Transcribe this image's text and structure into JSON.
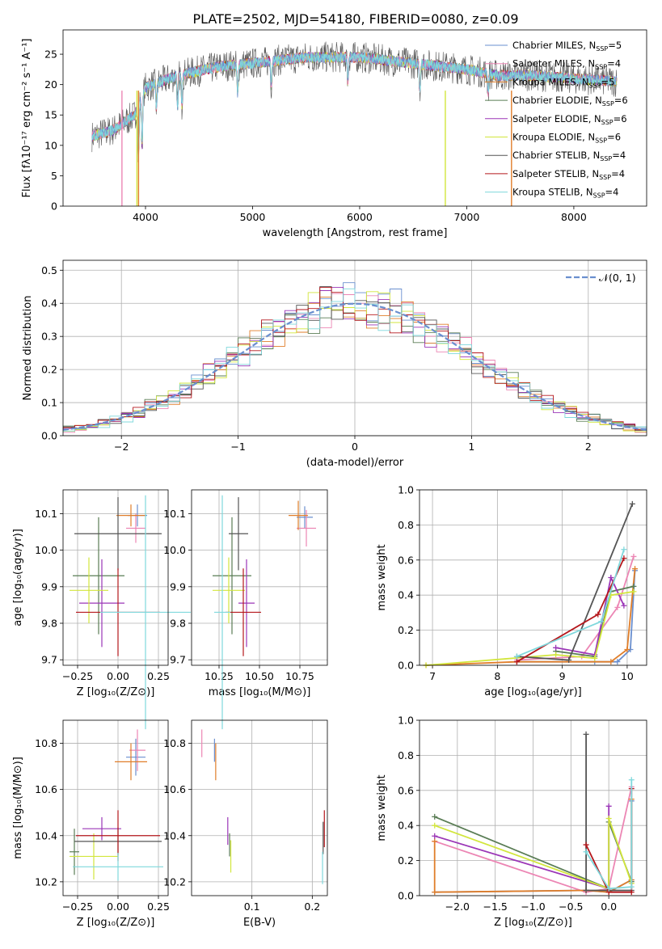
{
  "figure": {
    "title": "PLATE=2502, MJD=54180, FIBERID=0080, z=0.09"
  },
  "colors": {
    "Chabrier MILES": "#6a8fcf",
    "Salpeter MILES": "#ec86b4",
    "Kroupa MILES": "#e07e2a",
    "Chabrier ELODIE": "#5a7d55",
    "Salpeter ELODIE": "#9b36b7",
    "Kroupa ELODIE": "#d2e63c",
    "Chabrier STELIB": "#555555",
    "Salpeter STELIB": "#b5171c",
    "Kroupa STELIB": "#7fd8dc",
    "normal": "#6a8fcf"
  },
  "chart_data": [
    {
      "id": "spectrum",
      "type": "line",
      "xlabel": "wavelength [Angstrom, rest frame]",
      "ylabel": "Flux [fλ10⁻¹⁷ erg cm⁻² s⁻¹ A⁻¹]",
      "xlim": [
        3230,
        8680
      ],
      "ylim": [
        0,
        29
      ],
      "xticks": [
        4000,
        5000,
        6000,
        7000,
        8000
      ],
      "yticks": [
        0,
        5,
        10,
        15,
        20,
        25
      ],
      "legend_position": "top-right",
      "series": [
        {
          "name": "Chabrier MILES, N_SSP=5",
          "key": "Chabrier MILES"
        },
        {
          "name": "Salpeter MILES, N_SSP=4",
          "key": "Salpeter MILES"
        },
        {
          "name": "Kroupa MILES, N_SSP=5",
          "key": "Kroupa MILES"
        },
        {
          "name": "Chabrier ELODIE, N_SSP=6",
          "key": "Chabrier ELODIE"
        },
        {
          "name": "Salpeter ELODIE, N_SSP=6",
          "key": "Salpeter ELODIE"
        },
        {
          "name": "Kroupa ELODIE, N_SSP=6",
          "key": "Kroupa ELODIE"
        },
        {
          "name": "Chabrier STELIB, N_SSP=4",
          "key": "Chabrier STELIB"
        },
        {
          "name": "Salpeter STELIB, N_SSP=4",
          "key": "Salpeter STELIB"
        },
        {
          "name": "Kroupa STELIB, N_SSP=4",
          "key": "Kroupa STELIB"
        }
      ],
      "continuum": {
        "x": [
          3500,
          3700,
          3900,
          4000,
          4300,
          4700,
          5000,
          5500,
          6000,
          6500,
          7000,
          7300,
          7600,
          8000,
          8400
        ],
        "y": [
          11.5,
          12.5,
          15.0,
          19.5,
          21.5,
          23.0,
          23.5,
          24.5,
          24.5,
          23.5,
          22.5,
          21.5,
          21.5,
          21.0,
          20.5
        ]
      }
    },
    {
      "id": "residuals",
      "type": "line",
      "xlabel": "(data-model)/error",
      "ylabel": "Normed distribution",
      "xlim": [
        -2.5,
        2.5
      ],
      "ylim": [
        0,
        0.53
      ],
      "xticks": [
        -2,
        -1,
        0,
        1,
        2
      ],
      "xticklabels": [
        "−2",
        "−1",
        "0",
        "1",
        "2"
      ],
      "yticks": [
        0,
        0.1,
        0.2,
        0.3,
        0.4,
        0.5
      ],
      "yticklabels": [
        "0.0",
        "0.1",
        "0.2",
        "0.3",
        "0.4",
        "0.5"
      ],
      "grid": true,
      "legend_position": "top-right",
      "normal_label": "𝒩(0, 1)",
      "bin_width": 0.1
    },
    {
      "id": "age_vs_Z",
      "type": "scatter",
      "xlabel": "Z [log₁₀(Z/Z⊙)]",
      "ylabel": "age  [log₁₀(age/yr)]",
      "xlim": [
        -0.34,
        0.31
      ],
      "ylim": [
        9.685,
        10.165
      ],
      "xticks": [
        -0.25,
        0,
        0.25
      ],
      "xticklabels": [
        "−0.25",
        "0.00",
        "0.25"
      ],
      "yticks": [
        9.7,
        9.8,
        9.9,
        10.0,
        10.1
      ],
      "yticklabels": [
        "9.7",
        "9.8",
        "9.9",
        "10.0",
        "10.1"
      ],
      "grid": true,
      "points": [
        {
          "key": "Chabrier MILES",
          "x": 0.12,
          "y": 10.095,
          "xerr": 0.06,
          "yerr": 0.03
        },
        {
          "key": "Salpeter MILES",
          "x": 0.11,
          "y": 10.06,
          "xerr": 0.06,
          "yerr": 0.04
        },
        {
          "key": "Kroupa MILES",
          "x": 0.08,
          "y": 10.095,
          "xerr": 0.09,
          "yerr": 0.03
        },
        {
          "key": "Chabrier ELODIE",
          "x": -0.12,
          "y": 9.93,
          "xerr": 0.16,
          "yerr": 0.16
        },
        {
          "key": "Salpeter ELODIE",
          "x": -0.1,
          "y": 9.855,
          "xerr": 0.14,
          "yerr": 0.12
        },
        {
          "key": "Kroupa ELODIE",
          "x": -0.18,
          "y": 9.89,
          "xerr": 0.12,
          "yerr": 0.09
        },
        {
          "key": "Chabrier STELIB",
          "x": 0.0,
          "y": 10.045,
          "xerr": 0.27,
          "yerr": 0.1
        },
        {
          "key": "Salpeter STELIB",
          "x": 0.0,
          "y": 9.83,
          "xerr": 0.26,
          "yerr": 0.12
        },
        {
          "key": "Kroupa STELIB",
          "x": 0.17,
          "y": 9.83,
          "xerr": 0.28,
          "yerr": 0.32
        }
      ]
    },
    {
      "id": "age_vs_mass",
      "type": "scatter",
      "xlabel": "mass [log₁₀(M/M⊙)]",
      "ylabel": "",
      "xlim": [
        10.08,
        10.92
      ],
      "ylim": [
        9.685,
        10.165
      ],
      "xticks": [
        10.25,
        10.5,
        10.75
      ],
      "xticklabels": [
        "10.25",
        "10.50",
        "10.75"
      ],
      "yticks": [
        9.7,
        9.8,
        9.9,
        10.0,
        10.1
      ],
      "yticklabels": [
        "9.7",
        "9.8",
        "9.9",
        "10.0",
        "10.1"
      ],
      "grid": true,
      "points": [
        {
          "key": "Chabrier MILES",
          "x": 10.78,
          "y": 10.09,
          "xerr": 0.05,
          "yerr": 0.03
        },
        {
          "key": "Salpeter MILES",
          "x": 10.79,
          "y": 10.06,
          "xerr": 0.06,
          "yerr": 0.05
        },
        {
          "key": "Kroupa MILES",
          "x": 10.74,
          "y": 10.095,
          "xerr": 0.06,
          "yerr": 0.04
        },
        {
          "key": "Chabrier ELODIE",
          "x": 10.33,
          "y": 9.93,
          "xerr": 0.12,
          "yerr": 0.16
        },
        {
          "key": "Salpeter ELODIE",
          "x": 10.42,
          "y": 9.855,
          "xerr": 0.05,
          "yerr": 0.12
        },
        {
          "key": "Kroupa ELODIE",
          "x": 10.31,
          "y": 9.89,
          "xerr": 0.1,
          "yerr": 0.09
        },
        {
          "key": "Chabrier STELIB",
          "x": 10.37,
          "y": 10.045,
          "xerr": 0.06,
          "yerr": 0.1
        },
        {
          "key": "Salpeter STELIB",
          "x": 10.4,
          "y": 9.83,
          "xerr": 0.11,
          "yerr": 0.12
        },
        {
          "key": "Kroupa STELIB",
          "x": 10.27,
          "y": 9.83,
          "xerr": 0.05,
          "yerr": 0.32
        }
      ]
    },
    {
      "id": "weight_vs_age",
      "type": "line",
      "xlabel": "age  [log₁₀(age/yr)]",
      "ylabel": "mass weight",
      "xlim": [
        6.8,
        10.3
      ],
      "ylim": [
        0,
        1.0
      ],
      "xticks": [
        7,
        8,
        9,
        10
      ],
      "xticklabels": [
        "7",
        "8",
        "9",
        "10"
      ],
      "yticks": [
        0,
        0.2,
        0.4,
        0.6,
        0.8,
        1.0
      ],
      "yticklabels": [
        "0.0",
        "0.2",
        "0.4",
        "0.6",
        "0.8",
        "1.0"
      ],
      "grid": true,
      "series": [
        {
          "key": "Chabrier MILES",
          "x": [
            8.3,
            9.5,
            9.85,
            10.05,
            10.12
          ],
          "y": [
            0.02,
            0.02,
            0.02,
            0.09,
            0.54
          ]
        },
        {
          "key": "Salpeter MILES",
          "x": [
            8.3,
            9.3,
            9.85,
            10.1
          ],
          "y": [
            0.03,
            0.05,
            0.33,
            0.62
          ]
        },
        {
          "key": "Kroupa MILES",
          "x": [
            6.9,
            8.3,
            9.75,
            10.0,
            10.12
          ],
          "y": [
            0.0,
            0.02,
            0.02,
            0.09,
            0.55
          ]
        },
        {
          "key": "Chabrier ELODIE",
          "x": [
            8.9,
            9.5,
            9.75,
            10.1
          ],
          "y": [
            0.08,
            0.05,
            0.42,
            0.45
          ]
        },
        {
          "key": "Salpeter ELODIE",
          "x": [
            8.9,
            9.5,
            9.75,
            9.95
          ],
          "y": [
            0.1,
            0.06,
            0.5,
            0.34
          ]
        },
        {
          "key": "Kroupa ELODIE",
          "x": [
            6.9,
            8.9,
            9.5,
            9.75,
            10.1
          ],
          "y": [
            0.0,
            0.06,
            0.04,
            0.4,
            0.42
          ]
        },
        {
          "key": "Chabrier STELIB",
          "x": [
            8.3,
            9.1,
            10.08
          ],
          "y": [
            0.05,
            0.03,
            0.92
          ]
        },
        {
          "key": "Salpeter STELIB",
          "x": [
            8.3,
            9.55,
            9.95
          ],
          "y": [
            0.02,
            0.29,
            0.61
          ]
        },
        {
          "key": "Kroupa STELIB",
          "x": [
            8.3,
            9.6,
            9.95
          ],
          "y": [
            0.05,
            0.25,
            0.66
          ]
        }
      ]
    },
    {
      "id": "mass_vs_Z",
      "type": "scatter",
      "xlabel": "Z [log₁₀(Z/Z⊙)]",
      "ylabel": "mass [log₁₀(M/M⊙)]",
      "xlim": [
        -0.34,
        0.31
      ],
      "ylim": [
        10.14,
        10.9
      ],
      "xticks": [
        -0.25,
        0,
        0.25
      ],
      "xticklabels": [
        "−0.25",
        "0.00",
        "0.25"
      ],
      "yticks": [
        10.2,
        10.4,
        10.6,
        10.8
      ],
      "yticklabels": [
        "10.2",
        "10.4",
        "10.6",
        "10.8"
      ],
      "grid": true,
      "points": [
        {
          "key": "Chabrier MILES",
          "x": 0.11,
          "y": 10.74,
          "xerr": 0.06,
          "yerr": 0.08
        },
        {
          "key": "Salpeter MILES",
          "x": 0.12,
          "y": 10.77,
          "xerr": 0.05,
          "yerr": 0.09
        },
        {
          "key": "Kroupa MILES",
          "x": 0.08,
          "y": 10.72,
          "xerr": 0.1,
          "yerr": 0.08
        },
        {
          "key": "Chabrier ELODIE",
          "x": -0.27,
          "y": 10.33,
          "xerr": 0.03,
          "yerr": 0.1
        },
        {
          "key": "Salpeter ELODIE",
          "x": -0.1,
          "y": 10.43,
          "xerr": 0.12,
          "yerr": 0.05
        },
        {
          "key": "Kroupa ELODIE",
          "x": -0.15,
          "y": 10.31,
          "xerr": 0.15,
          "yerr": 0.1
        },
        {
          "key": "Chabrier STELIB",
          "x": 0.0,
          "y": 10.375,
          "xerr": 0.27,
          "yerr": 0.06
        },
        {
          "key": "Salpeter STELIB",
          "x": 0.0,
          "y": 10.4,
          "xerr": 0.26,
          "yerr": 0.11
        },
        {
          "key": "Kroupa STELIB",
          "x": 0.0,
          "y": 10.265,
          "xerr": 0.28,
          "yerr": 0.06
        }
      ]
    },
    {
      "id": "mass_vs_ebv",
      "type": "scatter",
      "xlabel": "E(B-V)",
      "ylabel": "",
      "xlim": [
        0.0,
        0.225
      ],
      "ylim": [
        10.14,
        10.9
      ],
      "xticks": [
        0.1,
        0.2
      ],
      "xticklabels": [
        "0.1",
        "0.2"
      ],
      "yticks": [
        10.2,
        10.4,
        10.6,
        10.8
      ],
      "yticklabels": [
        "10.2",
        "10.4",
        "10.6",
        "10.8"
      ],
      "grid": true,
      "points": [
        {
          "key": "Chabrier MILES",
          "x": 0.038,
          "y": 10.77,
          "xerr": 0,
          "yerr": 0.05
        },
        {
          "key": "Salpeter MILES",
          "x": 0.017,
          "y": 10.8,
          "xerr": 0,
          "yerr": 0.06
        },
        {
          "key": "Kroupa MILES",
          "x": 0.04,
          "y": 10.72,
          "xerr": 0,
          "yerr": 0.08
        },
        {
          "key": "Chabrier ELODIE",
          "x": 0.063,
          "y": 10.36,
          "xerr": 0,
          "yerr": 0.05
        },
        {
          "key": "Salpeter ELODIE",
          "x": 0.06,
          "y": 10.42,
          "xerr": 0,
          "yerr": 0.06
        },
        {
          "key": "Kroupa ELODIE",
          "x": 0.065,
          "y": 10.31,
          "xerr": 0,
          "yerr": 0.07
        },
        {
          "key": "Chabrier STELIB",
          "x": 0.218,
          "y": 10.39,
          "xerr": 0,
          "yerr": 0.07
        },
        {
          "key": "Salpeter STELIB",
          "x": 0.22,
          "y": 10.43,
          "xerr": 0,
          "yerr": 0.08
        },
        {
          "key": "Kroupa STELIB",
          "x": 0.217,
          "y": 10.26,
          "xerr": 0,
          "yerr": 0.07
        }
      ]
    },
    {
      "id": "weight_vs_Z",
      "type": "line",
      "xlabel": "Z [log₁₀(Z/Z⊙)]",
      "ylabel": "mass weight",
      "xlim": [
        -2.5,
        0.5
      ],
      "ylim": [
        0,
        1.0
      ],
      "xticks": [
        -2.0,
        -1.5,
        -1.0,
        -0.5,
        0.0
      ],
      "xticklabels": [
        "−2.0",
        "−1.5",
        "−1.0",
        "−0.5",
        "0.0"
      ],
      "yticks": [
        0,
        0.2,
        0.4,
        0.6,
        0.8,
        1.0
      ],
      "yticklabels": [
        "0.0",
        "0.2",
        "0.4",
        "0.6",
        "0.8",
        "1.0"
      ],
      "grid": true,
      "series": [
        {
          "key": "Chabrier MILES",
          "x": [
            -2.3,
            -0.3,
            0.0,
            0.3,
            0.3
          ],
          "y": [
            0.02,
            0.03,
            0.02,
            0.09,
            0.54
          ]
        },
        {
          "key": "Salpeter MILES",
          "x": [
            -2.3,
            -0.3,
            0.0,
            0.3
          ],
          "y": [
            0.31,
            0.02,
            0.04,
            0.62
          ]
        },
        {
          "key": "Kroupa MILES",
          "x": [
            -2.3,
            -2.3,
            -0.3,
            0.0,
            0.3,
            0.3
          ],
          "y": [
            0.31,
            0.02,
            0.03,
            0.02,
            0.09,
            0.55
          ]
        },
        {
          "key": "Chabrier ELODIE",
          "x": [
            -2.3,
            0.0,
            0.0,
            0.3
          ],
          "y": [
            0.45,
            0.04,
            0.42,
            0.08
          ]
        },
        {
          "key": "Salpeter ELODIE",
          "x": [
            -2.3,
            0.0,
            0.0
          ],
          "y": [
            0.34,
            0.04,
            0.51
          ]
        },
        {
          "key": "Kroupa ELODIE",
          "x": [
            -2.3,
            0.0,
            0.0,
            0.3
          ],
          "y": [
            0.4,
            0.04,
            0.44,
            0.07
          ]
        },
        {
          "key": "Chabrier STELIB",
          "x": [
            -0.3,
            -0.3,
            0.0,
            0.3
          ],
          "y": [
            0.92,
            0.03,
            0.03,
            0.03
          ]
        },
        {
          "key": "Salpeter STELIB",
          "x": [
            -0.3,
            0.0,
            0.3,
            0.3
          ],
          "y": [
            0.29,
            0.02,
            0.02,
            0.61
          ]
        },
        {
          "key": "Kroupa STELIB",
          "x": [
            -0.3,
            0.0,
            0.3,
            0.3
          ],
          "y": [
            0.25,
            0.04,
            0.05,
            0.66
          ]
        }
      ]
    }
  ]
}
